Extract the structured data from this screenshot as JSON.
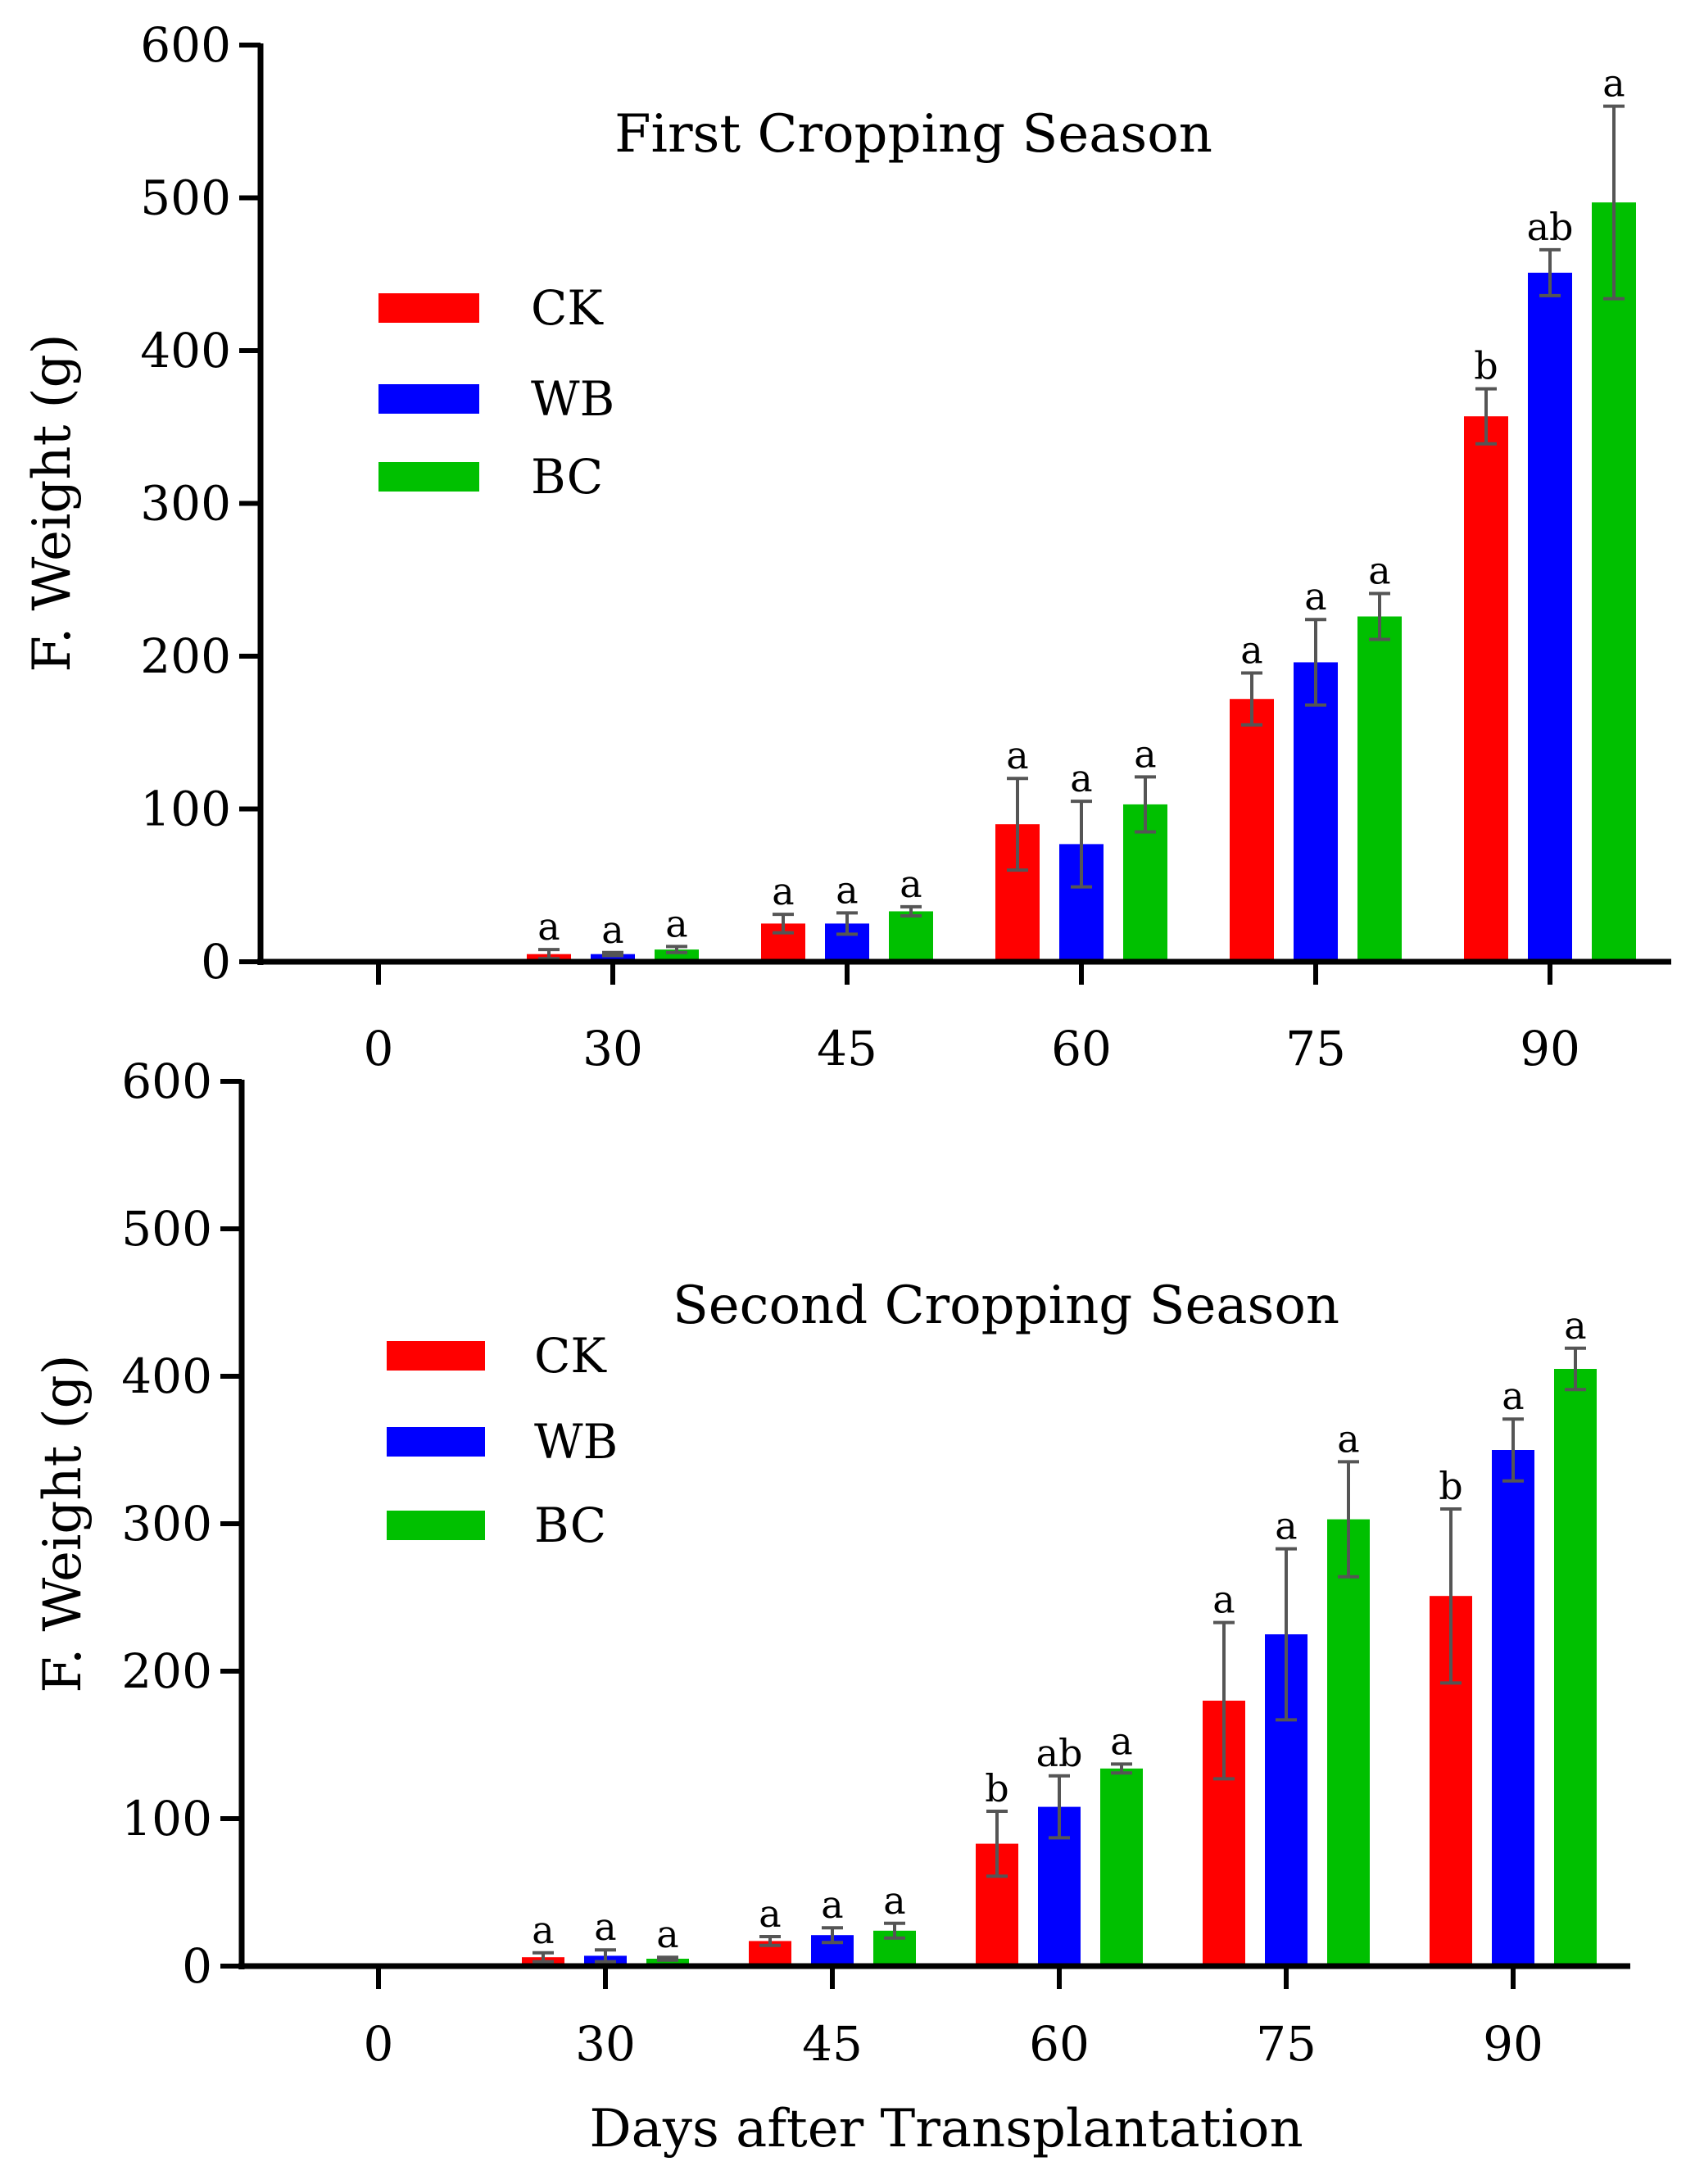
{
  "figure": {
    "xlabel": "Days after Transplantation"
  },
  "colors": {
    "CK": "#ff0000",
    "WB": "#0000ff",
    "BC": "#00c000",
    "axis": "#000000",
    "error_bar": "#555555"
  },
  "chart_data": [
    {
      "type": "bar",
      "title": "First Cropping Season",
      "ylabel": "F. Weight (g)",
      "xlabel": "",
      "ylim": [
        0,
        600
      ],
      "yticks": [
        0,
        100,
        200,
        300,
        400,
        500,
        600
      ],
      "categories": [
        "0",
        "30",
        "45",
        "60",
        "75",
        "90"
      ],
      "legend": [
        "CK",
        "WB",
        "BC"
      ],
      "legend_position": "upper-left",
      "series": [
        {
          "name": "CK",
          "values": [
            0,
            5,
            25,
            90,
            172,
            357
          ],
          "errors": [
            0,
            3,
            6,
            30,
            17,
            18
          ],
          "labels": [
            "",
            "a",
            "a",
            "a",
            "a",
            "b"
          ]
        },
        {
          "name": "WB",
          "values": [
            0,
            5,
            25,
            77,
            196,
            451
          ],
          "errors": [
            0,
            1,
            7,
            28,
            28,
            15
          ],
          "labels": [
            "",
            "a",
            "a",
            "a",
            "a",
            "ab"
          ]
        },
        {
          "name": "BC",
          "values": [
            0,
            8,
            33,
            103,
            226,
            497
          ],
          "errors": [
            0,
            2,
            3,
            18,
            15,
            63
          ],
          "labels": [
            "",
            "a",
            "a",
            "a",
            "a",
            "a"
          ]
        }
      ]
    },
    {
      "type": "bar",
      "title": "Second Cropping Season",
      "ylabel": "F. Weight (g)",
      "xlabel": "Days after Transplantation",
      "ylim": [
        0,
        600
      ],
      "yticks": [
        0,
        100,
        200,
        300,
        400,
        500,
        600
      ],
      "categories": [
        "0",
        "30",
        "45",
        "60",
        "75",
        "90"
      ],
      "legend": [
        "CK",
        "WB",
        "BC"
      ],
      "legend_position": "upper-left",
      "series": [
        {
          "name": "CK",
          "values": [
            0,
            6,
            17,
            83,
            180,
            251
          ],
          "errors": [
            0,
            3,
            3,
            22,
            53,
            59
          ],
          "labels": [
            "",
            "a",
            "a",
            "b",
            "a",
            "b"
          ]
        },
        {
          "name": "WB",
          "values": [
            0,
            7,
            21,
            108,
            225,
            350
          ],
          "errors": [
            0,
            4,
            5,
            21,
            58,
            21
          ],
          "labels": [
            "",
            "a",
            "a",
            "ab",
            "a",
            "a"
          ]
        },
        {
          "name": "BC",
          "values": [
            0,
            5,
            24,
            134,
            303,
            405
          ],
          "errors": [
            0,
            1,
            5,
            3,
            39,
            14
          ],
          "labels": [
            "",
            "a",
            "a",
            "a",
            "a",
            "a"
          ]
        }
      ]
    }
  ]
}
